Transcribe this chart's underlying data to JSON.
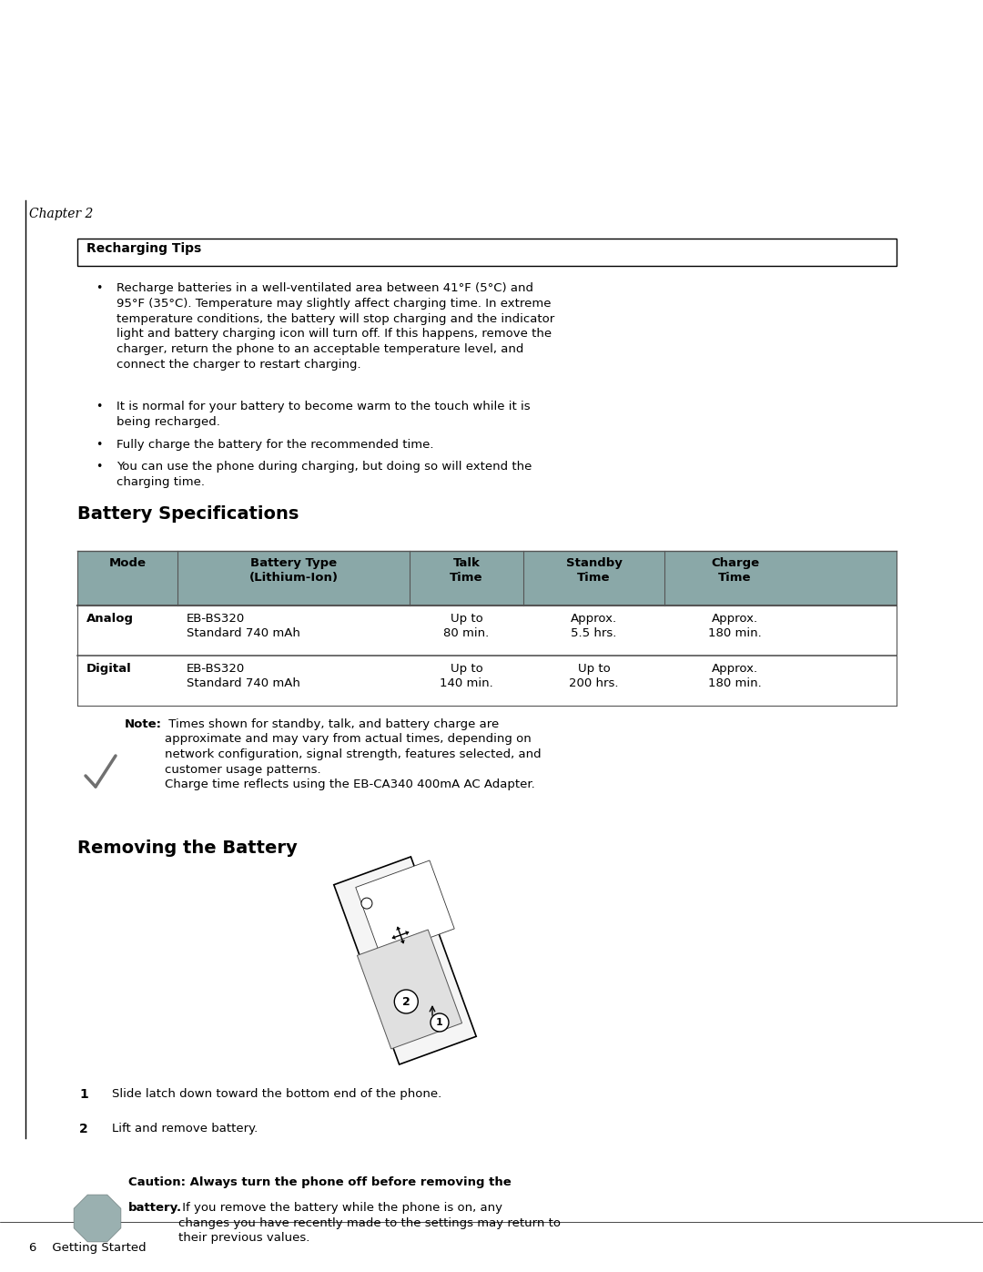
{
  "bg_color": "#ffffff",
  "page_width": 10.8,
  "page_height": 13.97,
  "text_color": "#000000",
  "chapter_text": "Chapter 2",
  "section1_title": "Recharging Tips",
  "bullet1": "Recharge batteries in a well-ventilated area between 41°F (5°C) and\n95°F (35°C). Temperature may slightly affect charging time. In extreme\ntemperature conditions, the battery will stop charging and the indicator\nlight and battery charging icon will turn off. If this happens, remove the\ncharger, return the phone to an acceptable temperature level, and\nconnect the charger to restart charging.",
  "bullet2": "It is normal for your battery to become warm to the touch while it is\nbeing recharged.",
  "bullet3": "Fully charge the battery for the recommended time.",
  "bullet4": "You can use the phone during charging, but doing so will extend the\ncharging time.",
  "section2_title": "Battery Specifications",
  "table_header_bg": "#8aa8a8",
  "col_headers": [
    "Mode",
    "Battery Type\n(Lithium-Ion)",
    "Talk\nTime",
    "Standby\nTime",
    "Charge\nTime"
  ],
  "row1_mode": "Analog",
  "row1_battery": "EB-BS320\nStandard 740 mAh",
  "row1_talk": "Up to\n80 min.",
  "row1_standby": "Approx.\n5.5 hrs.",
  "row1_charge": "Approx.\n180 min.",
  "row2_mode": "Digital",
  "row2_battery": "EB-BS320\nStandard 740 mAh",
  "row2_talk": "Up to\n140 min.",
  "row2_standby": "Up to\n200 hrs.",
  "row2_charge": "Approx.\n180 min.",
  "note_bold": "Note:",
  "note_text": " Times shown for standby, talk, and battery charge are\napproximate and may vary from actual times, depending on\nnetwork configuration, signal strength, features selected, and\ncustomer usage patterns.\nCharge time reflects using the EB-CA340 400mA AC Adapter.",
  "section3_title": "Removing the Battery",
  "step1": "Slide latch down toward the bottom end of the phone.",
  "step2": "Lift and remove battery.",
  "caution_line1": "Caution: Always turn the phone off before removing the",
  "caution_bold": "battery.",
  "caution_rest": " If you remove the battery while the phone is on, any\nchanges you have recently made to the settings may return to\ntheir previous values.",
  "footer_text": "6    Getting Started",
  "vert_line_color": "#000000",
  "table_line_color": "#555555"
}
